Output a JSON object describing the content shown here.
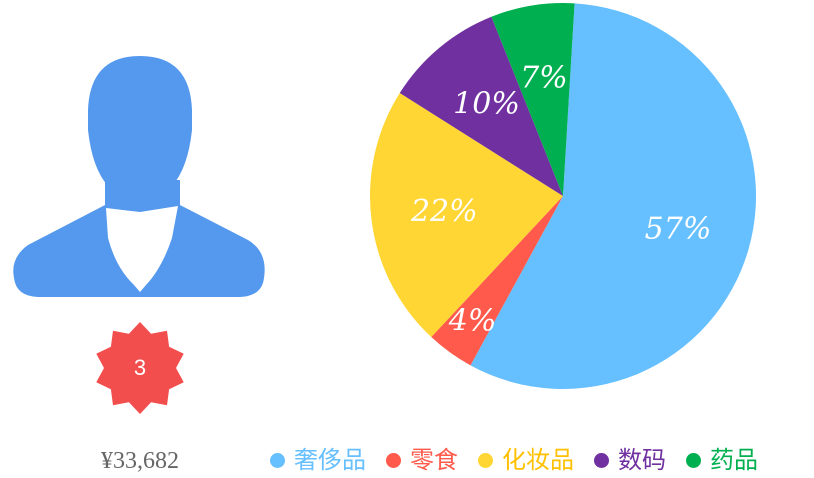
{
  "profile": {
    "avatar_icon": "user-silhouette-icon",
    "avatar_color": "#5599ee",
    "badge_icon": "starburst-badge-icon",
    "badge_color": "#f24e4e",
    "badge_count": "3",
    "amount": "¥33,682"
  },
  "chart_data": {
    "type": "pie",
    "categories": [
      "奢侈品",
      "零食",
      "化妆品",
      "数码",
      "药品"
    ],
    "values": [
      57,
      4,
      22,
      10,
      7
    ],
    "labels": [
      "57%",
      "4%",
      "22%",
      "10%",
      "7%"
    ],
    "colors": [
      "#66bfff",
      "#ff5a4b",
      "#ffd633",
      "#7030a0",
      "#00b050"
    ],
    "legend_text_colors": [
      "#66bfff",
      "#ff5a4b",
      "#ffc000",
      "#7030a0",
      "#00b050"
    ],
    "legend_placement": "bottom",
    "title": ""
  }
}
